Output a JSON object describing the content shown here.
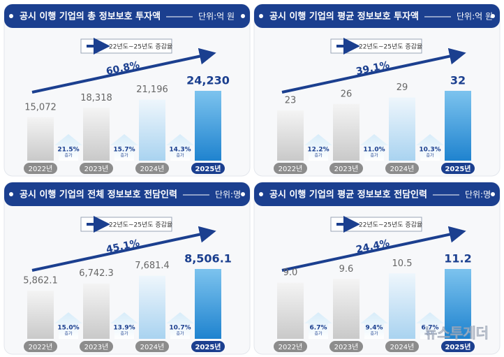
{
  "chart_data": [
    {
      "type": "bar",
      "title": "공시 이행 기업의 총 정보보호 투자액",
      "unit": "단위:억 원",
      "legend": "22년도~25년도 증감율",
      "total_change": {
        "value": 60.8,
        "label": "60.8%"
      },
      "categories": [
        "2022년",
        "2023년",
        "2024년",
        "2025년"
      ],
      "values": [
        15072,
        18318,
        21196,
        24230
      ],
      "value_labels": [
        "15,072",
        "18,318",
        "21,196",
        "24,230"
      ],
      "changes": [
        21.5,
        15.7,
        14.3
      ],
      "change_labels": [
        "21.5%",
        "15.7%",
        "14.3%"
      ],
      "change_word": "증가"
    },
    {
      "type": "bar",
      "title": "공시 이행 기업의 평균 정보보호 투자액",
      "unit": "단위:억 원",
      "legend": "22년도~25년도 증감율",
      "total_change": {
        "value": 39.1,
        "label": "39.1%"
      },
      "categories": [
        "2022년",
        "2023년",
        "2024년",
        "2025년"
      ],
      "values": [
        23,
        26,
        29,
        32
      ],
      "changes": [
        12.2,
        11.0,
        10.3
      ],
      "change_labels": [
        "12.2%",
        "11.0%",
        "10.3%"
      ],
      "change_word": "증가"
    },
    {
      "type": "bar",
      "title": "공시 이행 기업의 전체 정보보호 전담인력",
      "unit": "단위:명",
      "legend": "22년도~25년도 증감율",
      "total_change": {
        "value": 45.1,
        "label": "45.1%"
      },
      "categories": [
        "2022년",
        "2023년",
        "2024년",
        "2025년"
      ],
      "values": [
        5862.1,
        6742.3,
        7681.4,
        8506.1
      ],
      "value_labels": [
        "5,862.1",
        "6,742.3",
        "7,681.4",
        "8,506.1"
      ],
      "changes": [
        15.0,
        13.9,
        10.7
      ],
      "change_labels": [
        "15.0%",
        "13.9%",
        "10.7%"
      ],
      "change_word": "증가"
    },
    {
      "type": "bar",
      "title": "공시 이행 기업의 평균 정보보호 전담인력",
      "unit": "단위:명",
      "legend": "22년도~25년도 증감율",
      "total_change": {
        "value": 24.4,
        "label": "24.4%"
      },
      "categories": [
        "2022년",
        "2023년",
        "2024년",
        "2025년"
      ],
      "values": [
        9.0,
        9.6,
        10.5,
        11.2
      ],
      "value_labels": [
        "9.0",
        "9.6",
        "10.5",
        "11.2"
      ],
      "changes": [
        6.7,
        9.4,
        6.7
      ],
      "change_labels": [
        "6.7%",
        "9.4%",
        "6.7%"
      ],
      "change_word": "증가"
    }
  ],
  "watermark": "뉴스투게더"
}
